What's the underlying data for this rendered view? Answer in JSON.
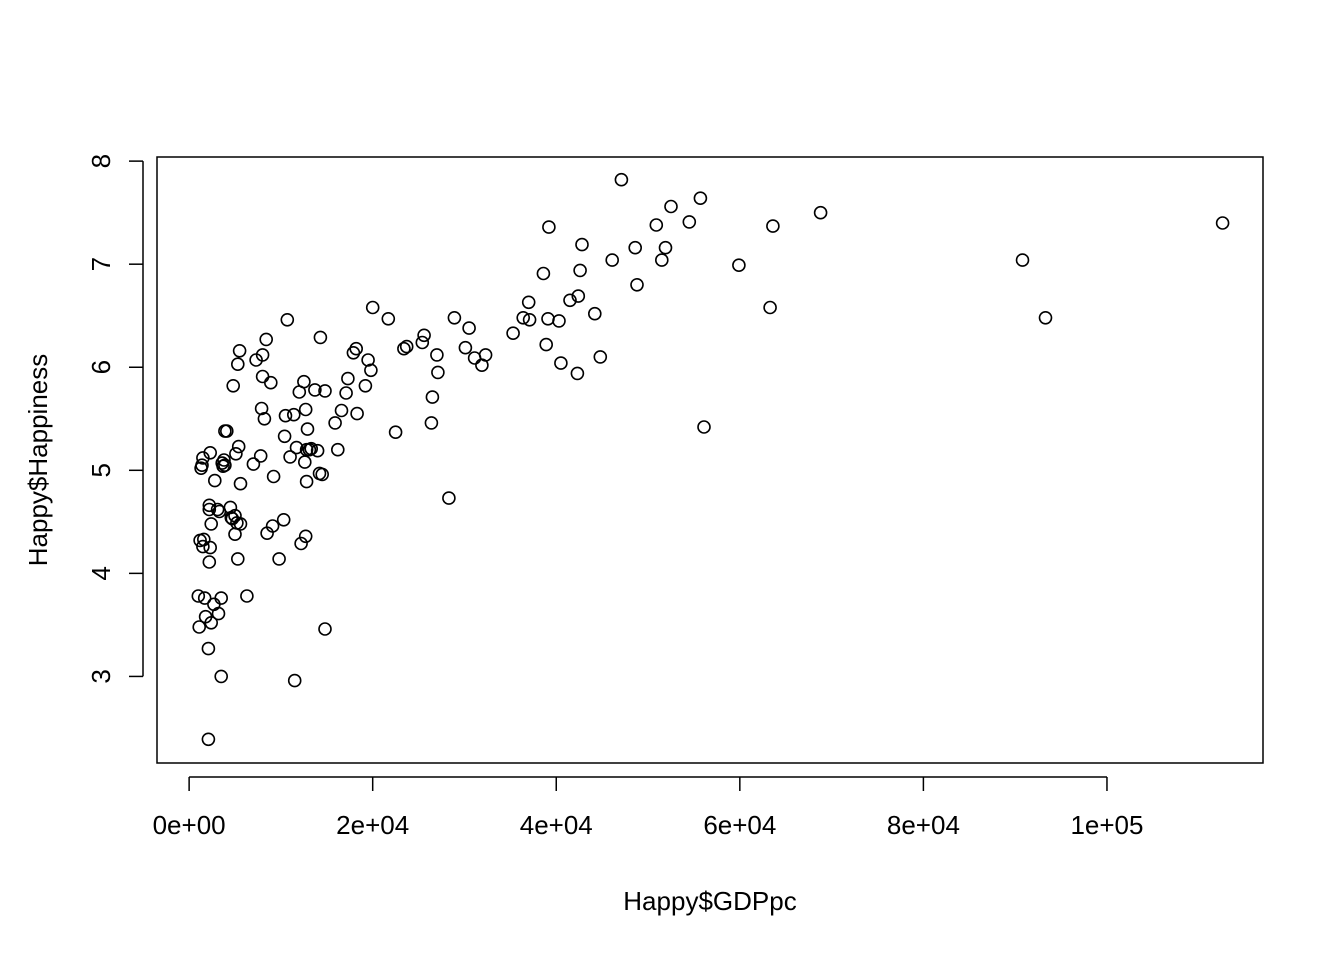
{
  "chart_data": {
    "type": "scatter",
    "title": "",
    "xlabel": "Happy$GDPpc",
    "ylabel": "Happy$Happiness",
    "xlim": [
      -3500,
      117000
    ],
    "ylim": [
      2.16,
      8.04
    ],
    "x_ticks": [
      0,
      20000,
      40000,
      60000,
      80000,
      100000
    ],
    "x_tick_labels": [
      "0e+00",
      "2e+04",
      "4e+04",
      "6e+04",
      "8e+04",
      "1e+05"
    ],
    "y_ticks": [
      3,
      4,
      5,
      6,
      7,
      8
    ],
    "y_tick_labels": [
      "3",
      "4",
      "5",
      "6",
      "7",
      "8"
    ],
    "grid": false,
    "legend": "none",
    "points": [
      [
        1000,
        3.78
      ],
      [
        1100,
        3.48
      ],
      [
        1200,
        4.32
      ],
      [
        1300,
        5.02
      ],
      [
        1400,
        5.05
      ],
      [
        1500,
        5.12
      ],
      [
        1500,
        4.26
      ],
      [
        1600,
        4.33
      ],
      [
        1700,
        3.76
      ],
      [
        1800,
        3.58
      ],
      [
        2100,
        2.39
      ],
      [
        2100,
        3.27
      ],
      [
        2200,
        4.66
      ],
      [
        2200,
        4.62
      ],
      [
        2200,
        4.11
      ],
      [
        2300,
        5.17
      ],
      [
        2300,
        4.25
      ],
      [
        2400,
        4.48
      ],
      [
        2400,
        3.52
      ],
      [
        2700,
        3.7
      ],
      [
        2800,
        4.9
      ],
      [
        3100,
        4.62
      ],
      [
        3200,
        3.61
      ],
      [
        3300,
        4.6
      ],
      [
        3500,
        3.76
      ],
      [
        3500,
        3.0
      ],
      [
        3600,
        5.07
      ],
      [
        3700,
        5.04
      ],
      [
        3800,
        5.1
      ],
      [
        3900,
        5.05
      ],
      [
        3900,
        5.38
      ],
      [
        4100,
        5.38
      ],
      [
        4500,
        4.64
      ],
      [
        4600,
        4.54
      ],
      [
        4700,
        4.53
      ],
      [
        4800,
        5.82
      ],
      [
        5000,
        4.56
      ],
      [
        5000,
        4.38
      ],
      [
        5100,
        5.16
      ],
      [
        5200,
        4.49
      ],
      [
        5300,
        4.14
      ],
      [
        5300,
        6.03
      ],
      [
        5400,
        5.23
      ],
      [
        5500,
        6.16
      ],
      [
        5600,
        4.48
      ],
      [
        5600,
        4.87
      ],
      [
        6300,
        3.78
      ],
      [
        7000,
        5.06
      ],
      [
        7300,
        6.07
      ],
      [
        7800,
        5.14
      ],
      [
        7900,
        5.6
      ],
      [
        8000,
        6.12
      ],
      [
        8000,
        5.91
      ],
      [
        8200,
        5.5
      ],
      [
        8400,
        6.27
      ],
      [
        8500,
        4.39
      ],
      [
        8900,
        5.85
      ],
      [
        9100,
        4.46
      ],
      [
        9200,
        4.94
      ],
      [
        9800,
        4.14
      ],
      [
        10300,
        4.52
      ],
      [
        10400,
        5.33
      ],
      [
        10500,
        5.53
      ],
      [
        10700,
        6.46
      ],
      [
        11000,
        5.13
      ],
      [
        11400,
        5.54
      ],
      [
        11500,
        2.96
      ],
      [
        11700,
        5.22
      ],
      [
        12000,
        5.76
      ],
      [
        12200,
        4.29
      ],
      [
        12500,
        5.86
      ],
      [
        12600,
        5.08
      ],
      [
        12700,
        5.59
      ],
      [
        12700,
        4.36
      ],
      [
        12800,
        5.2
      ],
      [
        12800,
        4.89
      ],
      [
        12900,
        5.4
      ],
      [
        13100,
        5.2
      ],
      [
        13300,
        5.21
      ],
      [
        13700,
        5.78
      ],
      [
        14000,
        5.19
      ],
      [
        14200,
        4.97
      ],
      [
        14300,
        6.29
      ],
      [
        14500,
        4.96
      ],
      [
        14800,
        3.46
      ],
      [
        14800,
        5.77
      ],
      [
        15900,
        5.46
      ],
      [
        16200,
        5.2
      ],
      [
        16600,
        5.58
      ],
      [
        17100,
        5.75
      ],
      [
        17300,
        5.89
      ],
      [
        17900,
        6.14
      ],
      [
        18200,
        6.18
      ],
      [
        18300,
        5.55
      ],
      [
        19200,
        5.82
      ],
      [
        19500,
        6.07
      ],
      [
        19800,
        5.97
      ],
      [
        20000,
        6.58
      ],
      [
        21700,
        6.47
      ],
      [
        22500,
        5.37
      ],
      [
        23400,
        6.18
      ],
      [
        23700,
        6.2
      ],
      [
        25400,
        6.24
      ],
      [
        25600,
        6.31
      ],
      [
        26400,
        5.46
      ],
      [
        26500,
        5.71
      ],
      [
        27000,
        6.12
      ],
      [
        27100,
        5.95
      ],
      [
        28300,
        4.73
      ],
      [
        28900,
        6.48
      ],
      [
        30100,
        6.19
      ],
      [
        30500,
        6.38
      ],
      [
        31100,
        6.09
      ],
      [
        31900,
        6.02
      ],
      [
        32300,
        6.12
      ],
      [
        35300,
        6.33
      ],
      [
        36400,
        6.48
      ],
      [
        37000,
        6.63
      ],
      [
        37100,
        6.46
      ],
      [
        38600,
        6.91
      ],
      [
        38900,
        6.22
      ],
      [
        39100,
        6.47
      ],
      [
        39200,
        7.36
      ],
      [
        40300,
        6.45
      ],
      [
        40500,
        6.04
      ],
      [
        41500,
        6.65
      ],
      [
        42300,
        5.94
      ],
      [
        42400,
        6.69
      ],
      [
        42600,
        6.94
      ],
      [
        42800,
        7.19
      ],
      [
        44200,
        6.52
      ],
      [
        44800,
        6.1
      ],
      [
        46100,
        7.04
      ],
      [
        47100,
        7.82
      ],
      [
        48600,
        7.16
      ],
      [
        48800,
        6.8
      ],
      [
        50900,
        7.38
      ],
      [
        51500,
        7.04
      ],
      [
        51900,
        7.16
      ],
      [
        52500,
        7.56
      ],
      [
        54500,
        7.41
      ],
      [
        55700,
        7.64
      ],
      [
        56100,
        5.42
      ],
      [
        59900,
        6.99
      ],
      [
        63300,
        6.58
      ],
      [
        63600,
        7.37
      ],
      [
        68800,
        7.5
      ],
      [
        90800,
        7.04
      ],
      [
        93300,
        6.48
      ],
      [
        112600,
        7.4
      ]
    ]
  }
}
